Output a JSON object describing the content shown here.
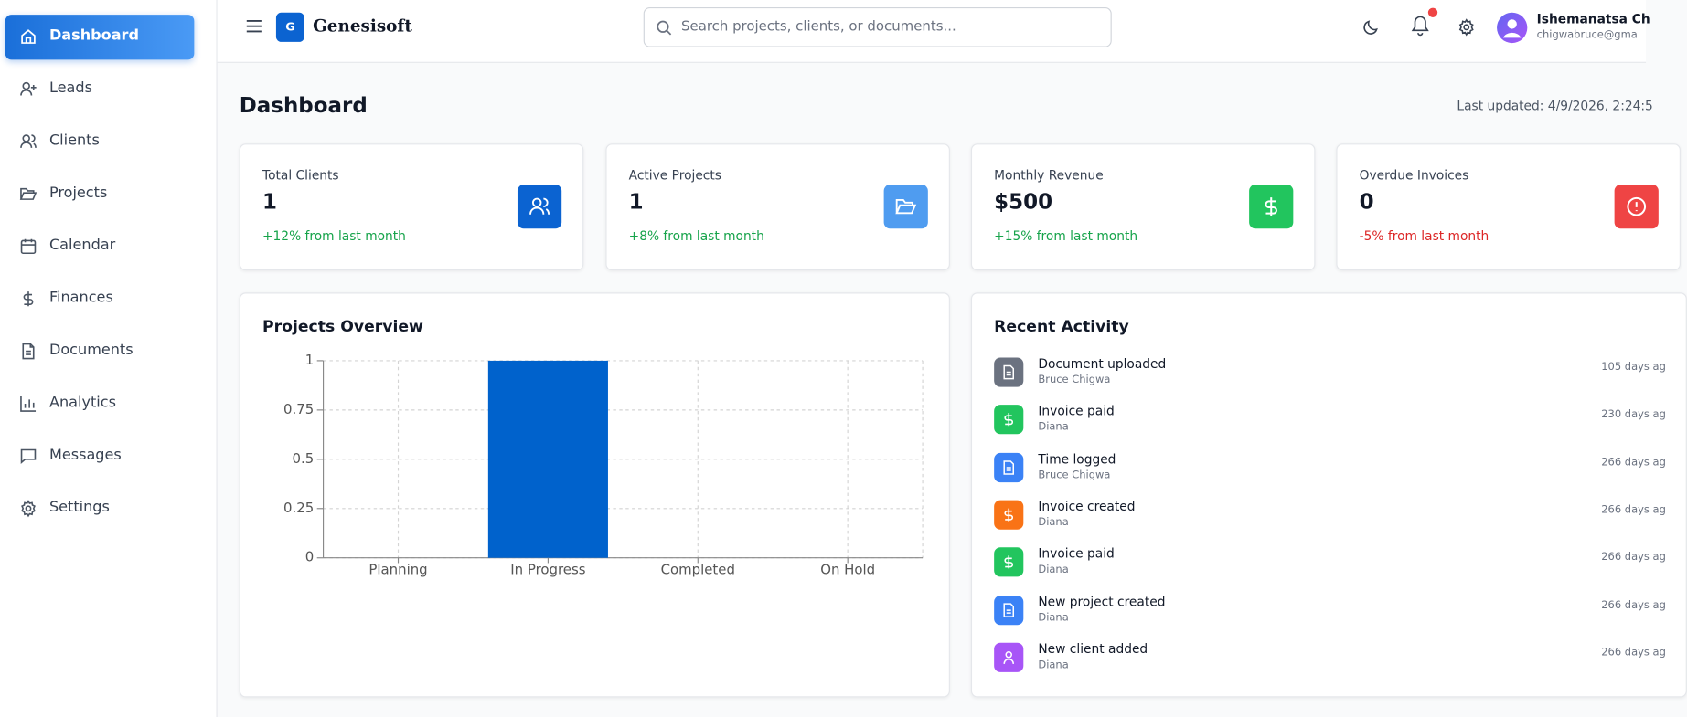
{
  "sidebar": {
    "items": [
      "Dashboard",
      "Leads",
      "Clients",
      "Projects",
      "Calendar",
      "Finances",
      "Documents",
      "Analytics",
      "Messages",
      "Settings"
    ]
  },
  "header": {
    "logo_letter": "G",
    "brand": "Genesisoft",
    "search_placeholder": "Search projects, clients, or documents...",
    "user_name": "Ishemanatsa Ch",
    "user_email": "chigwabruce@gma"
  },
  "page": {
    "title": "Dashboard",
    "last_updated": "Last updated: 4/9/2026, 2:24:5"
  },
  "stats": [
    {
      "title": "Total Clients",
      "value": "1",
      "change": "+12% from last month"
    },
    {
      "title": "Active Projects",
      "value": "1",
      "change": "+8% from last month"
    },
    {
      "title": "Monthly Revenue",
      "value": "$500",
      "change": "+15% from last month"
    },
    {
      "title": "Overdue Invoices",
      "value": "0",
      "change": "-5% from last month"
    }
  ],
  "chart_data": {
    "type": "bar",
    "title": "Projects Overview",
    "categories": [
      "Planning",
      "In Progress",
      "Completed",
      "On Hold"
    ],
    "values": [
      0,
      1,
      0,
      0
    ],
    "color": "#0062cc",
    "ylim": [
      0,
      1
    ],
    "yticks": [
      0,
      0.25,
      0.5,
      0.75,
      1
    ],
    "grid": true
  },
  "activity": {
    "title": "Recent Activity",
    "items": [
      {
        "title": "Document uploaded",
        "user": "Bruce Chigwa",
        "time": "105 days ag"
      },
      {
        "title": "Invoice paid",
        "user": "Diana",
        "time": "230 days ag"
      },
      {
        "title": "Time logged",
        "user": "Bruce Chigwa",
        "time": "266 days ag"
      },
      {
        "title": "Invoice created",
        "user": "Diana",
        "time": "266 days ag"
      },
      {
        "title": "Invoice paid",
        "user": "Diana",
        "time": "266 days ag"
      },
      {
        "title": "New project created",
        "user": "Diana",
        "time": "266 days ag"
      },
      {
        "title": "New client added",
        "user": "Diana",
        "time": "266 days ag"
      }
    ]
  }
}
